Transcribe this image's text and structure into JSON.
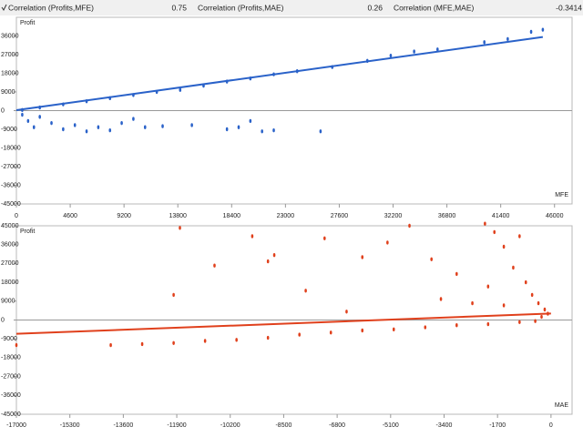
{
  "header": {
    "items": [
      {
        "label": "Correlation (Profits,MFE)",
        "value": 0.75
      },
      {
        "label": "Correlation (Profits,MAE)",
        "value": 0.26
      },
      {
        "label": "Correlation (MFE,MAE)",
        "value": -0.3414
      }
    ]
  },
  "chart_data": [
    {
      "type": "scatter",
      "ylabel": "Profit",
      "xlabel": "MFE",
      "xlim": [
        0,
        47500
      ],
      "ylim": [
        -45000,
        45000
      ],
      "xticks": [
        0,
        4600,
        9200,
        13800,
        18400,
        23000,
        27600,
        32200,
        36800,
        41400,
        46000
      ],
      "yticks": [
        36000,
        27000,
        18000,
        9000,
        0,
        -9000,
        -18000,
        -27000,
        -36000,
        -45000
      ],
      "series": [
        {
          "color": "#2a62c9",
          "x": [
            500,
            2000,
            4000,
            6000,
            8000,
            10000,
            12000,
            14000,
            16000,
            18000,
            20000,
            22000,
            24000,
            27000,
            30000,
            32000,
            34000,
            36000,
            40000,
            42000,
            44000,
            45000,
            500,
            1000,
            1500,
            2000,
            3000,
            4000,
            5000,
            6000,
            7000,
            8000,
            9000,
            10000,
            11000,
            12500,
            15000,
            18000,
            19000,
            20000,
            21000,
            22000,
            26000
          ],
          "y": [
            300,
            1500,
            3000,
            4500,
            6000,
            7500,
            9000,
            10000,
            12000,
            14000,
            15500,
            17500,
            19000,
            21000,
            24000,
            26500,
            28500,
            29500,
            33000,
            34500,
            38000,
            39000,
            -2000,
            -5000,
            -8000,
            -3000,
            -6000,
            -9000,
            -7000,
            -10000,
            -8000,
            -9500,
            -6000,
            -4000,
            -8000,
            -7500,
            -7000,
            -9000,
            -8000,
            -5000,
            -10000,
            -9500,
            -10000
          ]
        },
        {
          "type": "line",
          "color": "#2a62c9",
          "x": [
            0,
            45000
          ],
          "y": [
            200,
            35500
          ]
        }
      ]
    },
    {
      "type": "scatter",
      "ylabel": "Profit",
      "xlabel": "MAE",
      "xlim": [
        -17000,
        670
      ],
      "ylim": [
        -45000,
        45000
      ],
      "xticks": [
        -17000,
        -15300,
        -13600,
        -11900,
        -10200,
        -8500,
        -6800,
        -5100,
        -3400,
        -1700,
        0
      ],
      "yticks": [
        45000,
        36000,
        27000,
        18000,
        9000,
        0,
        -9000,
        -18000,
        -27000,
        -36000,
        -45000
      ],
      "series": [
        {
          "color": "#e0401c",
          "x": [
            -17000,
            -14000,
            -13000,
            -12000,
            -11000,
            -10000,
            -9000,
            -8000,
            -7000,
            -6000,
            -5000,
            -4000,
            -3000,
            -2000,
            -1000,
            -500,
            -11800,
            -10700,
            -9500,
            -9000,
            -7800,
            -8800,
            -7200,
            -6000,
            -5200,
            -4500,
            -3800,
            -3500,
            -3000,
            -2100,
            -2000,
            -1800,
            -1500,
            -1200,
            -1000,
            -800,
            -600,
            -400,
            -200,
            -100,
            -300,
            -12000,
            -2500,
            -1500,
            -6500
          ],
          "y": [
            -12000,
            -12000,
            -11500,
            -11000,
            -10000,
            -9500,
            -8500,
            -7000,
            -6000,
            -5000,
            -4500,
            -3500,
            -2500,
            -2000,
            -1000,
            -500,
            44000,
            26000,
            40000,
            28000,
            14000,
            31000,
            39000,
            30000,
            37000,
            45000,
            29000,
            10000,
            22000,
            46000,
            16000,
            42000,
            35000,
            25000,
            40000,
            18000,
            12000,
            8000,
            5000,
            3000,
            1500,
            12000,
            8000,
            7000,
            4000
          ]
        },
        {
          "type": "line",
          "color": "#e0401c",
          "x": [
            -17000,
            0
          ],
          "y": [
            -6600,
            3100
          ]
        }
      ]
    }
  ]
}
